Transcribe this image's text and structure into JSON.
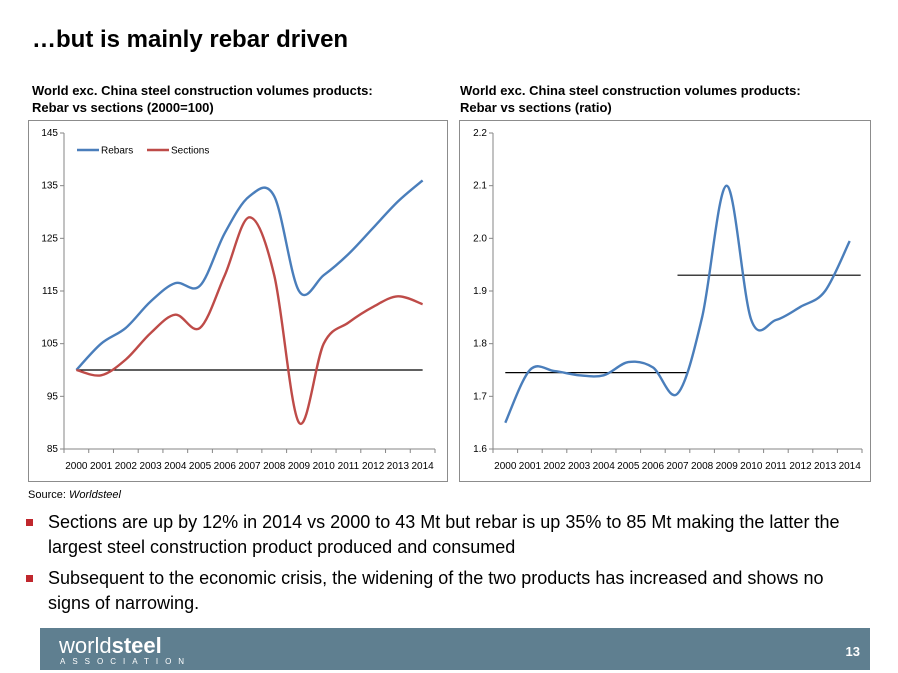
{
  "slide": {
    "title": "…but is mainly rebar driven",
    "page_number": "13"
  },
  "chart_data": [
    {
      "type": "line",
      "title": "World exc. China steel construction volumes products:\nRebar vs sections (2000=100)",
      "x": [
        "2000",
        "2001",
        "2002",
        "2003",
        "2004",
        "2005",
        "2006",
        "2007",
        "2008",
        "2009",
        "2010",
        "2011",
        "2012",
        "2013",
        "2014"
      ],
      "yticks": [
        "145",
        "135",
        "125",
        "115",
        "105",
        "95",
        "85"
      ],
      "ylim": [
        85,
        145
      ],
      "legend_position": "top-left",
      "series": [
        {
          "name": "Rebars",
          "color": "#4a7ebb",
          "values": [
            100,
            105,
            108,
            113,
            116.5,
            116,
            126,
            133,
            133,
            115,
            118,
            122,
            127,
            132,
            136
          ]
        },
        {
          "name": "Sections",
          "color": "#be4b48",
          "values": [
            100,
            99,
            102,
            107,
            110.5,
            108,
            118,
            129,
            118,
            90,
            105,
            109,
            112,
            114,
            112.5
          ]
        }
      ],
      "reference_line": {
        "value": 100,
        "from": "2000",
        "to": "2014",
        "color": "#000000"
      }
    },
    {
      "type": "line",
      "title": "World exc. China steel construction volumes products:\nRebar vs sections (ratio)",
      "x": [
        "2000",
        "2001",
        "2002",
        "2003",
        "2004",
        "2005",
        "2006",
        "2007",
        "2008",
        "2009",
        "2010",
        "2011",
        "2012",
        "2013",
        "2014"
      ],
      "yticks": [
        "2.2",
        "2.1",
        "2.0",
        "1.9",
        "1.8",
        "1.7",
        "1.6"
      ],
      "ylim": [
        1.6,
        2.2
      ],
      "series": [
        {
          "color": "#4a7ebb",
          "values": [
            1.65,
            1.75,
            1.748,
            1.74,
            1.74,
            1.765,
            1.755,
            1.705,
            1.85,
            2.1,
            1.845,
            1.845,
            1.87,
            1.9,
            1.995
          ]
        }
      ],
      "reference_lines": [
        {
          "value": 1.745,
          "from": "2000",
          "to": "2007",
          "color": "#000000"
        },
        {
          "value": 1.93,
          "from": "2007",
          "to": "2014",
          "color": "#000000"
        }
      ]
    }
  ],
  "source": {
    "label": "Source: ",
    "name": "Worldsteel"
  },
  "bullets": [
    "Sections are up by 12% in 2014 vs 2000 to 43 Mt but rebar is up 35% to 85 Mt making the latter the largest steel construction product produced and consumed",
    "Subsequent to the economic crisis, the widening of the two products has increased and shows no signs of narrowing."
  ],
  "footer": {
    "logo_word1": "world",
    "logo_word2": "steel",
    "logo_sub": "ASSOCIATION"
  }
}
